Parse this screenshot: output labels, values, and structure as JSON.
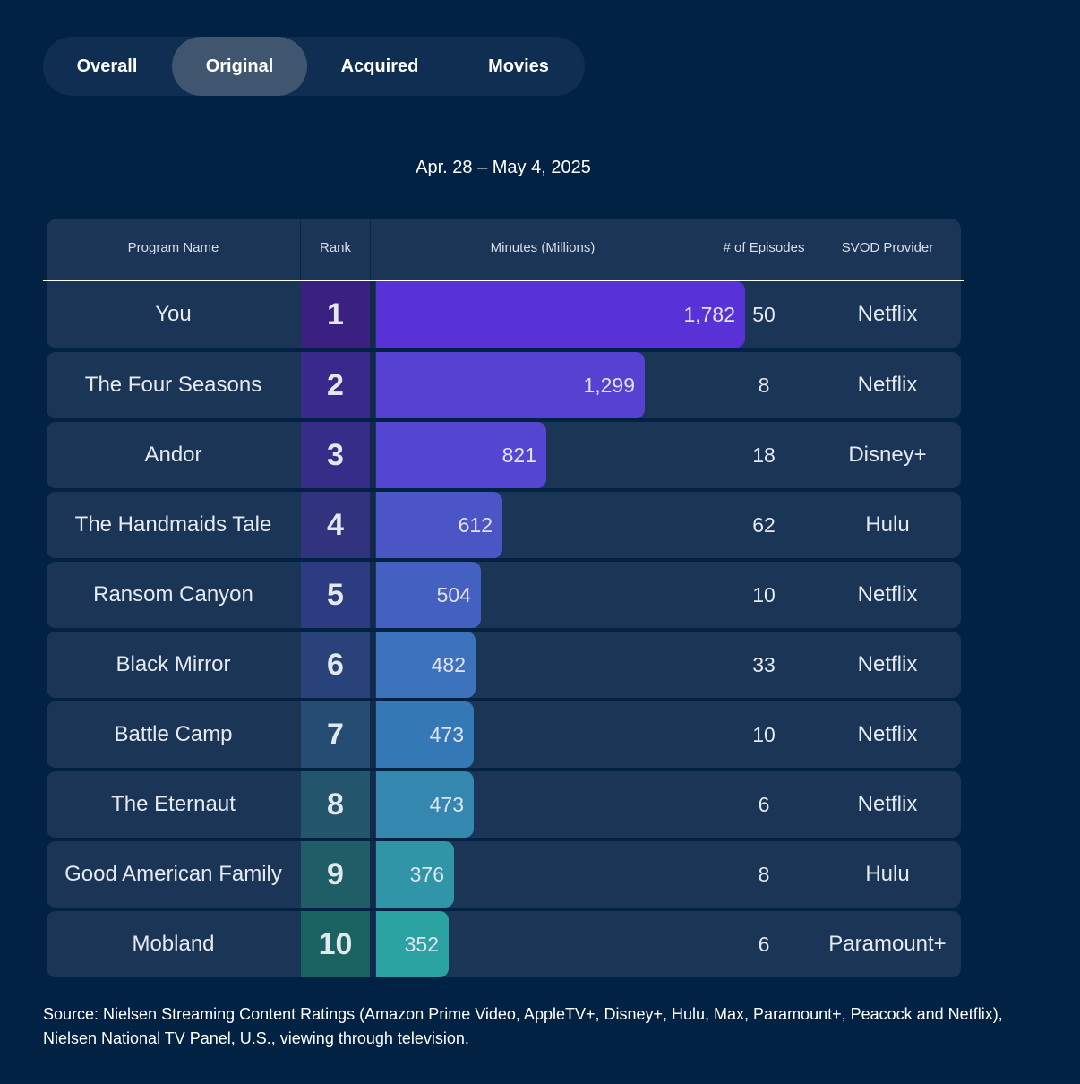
{
  "tabs": [
    {
      "label": "Overall",
      "active": false
    },
    {
      "label": "Original",
      "active": true
    },
    {
      "label": "Acquired",
      "active": false
    },
    {
      "label": "Movies",
      "active": false
    }
  ],
  "date_range": "Apr. 28 – May 4, 2025",
  "columns": {
    "program": "Program Name",
    "rank": "Rank",
    "minutes": "Minutes (Millions)",
    "episodes": "# of Episodes",
    "provider": "SVOD Provider"
  },
  "chart_data": {
    "type": "bar",
    "orientation": "horizontal",
    "title": "Apr. 28 – May 4, 2025",
    "value_label": "Minutes (Millions)",
    "xlim": [
      0,
      1782
    ],
    "categories": [
      "You",
      "The Four Seasons",
      "Andor",
      "The Handmaids Tale",
      "Ransom Canyon",
      "Black Mirror",
      "Battle Camp",
      "The Eternaut",
      "Good American Family",
      "Mobland"
    ],
    "values": [
      1782,
      1299,
      821,
      612,
      504,
      482,
      473,
      473,
      376,
      352
    ],
    "value_labels": [
      "1,782",
      "1,299",
      "821",
      "612",
      "504",
      "482",
      "473",
      "473",
      "376",
      "352"
    ],
    "ranks": [
      "1",
      "2",
      "3",
      "4",
      "5",
      "6",
      "7",
      "8",
      "9",
      "10"
    ],
    "episodes": [
      "50",
      "8",
      "18",
      "62",
      "10",
      "33",
      "10",
      "6",
      "8",
      "6"
    ],
    "providers": [
      "Netflix",
      "Netflix",
      "Disney+",
      "Hulu",
      "Netflix",
      "Netflix",
      "Netflix",
      "Netflix",
      "Hulu",
      "Paramount+"
    ],
    "bar_colors": [
      "#5832d6",
      "#5641d2",
      "#5446d0",
      "#4b55c6",
      "#4461c2",
      "#3d72bd",
      "#3478b6",
      "#3488af",
      "#3095a6",
      "#2ba3a3"
    ],
    "rank_colors": [
      "#3a2181",
      "#38298a",
      "#352d88",
      "#31337f",
      "#2d3b80",
      "#2a427a",
      "#254c72",
      "#23556c",
      "#1f5d67",
      "#1b6263"
    ]
  },
  "source": "Source: Nielsen Streaming Content Ratings (Amazon Prime Video, AppleTV+, Disney+, Hulu, Max, Paramount+, Peacock and Netflix), Nielsen National TV Panel, U.S., viewing through television."
}
